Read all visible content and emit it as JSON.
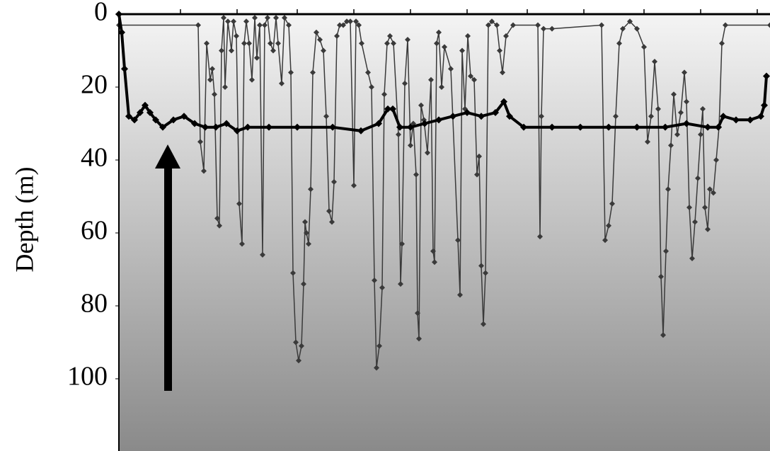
{
  "chart_data": {
    "type": "line",
    "y_label": "Depth (m)",
    "ylim": [
      0,
      120
    ],
    "yticks": [
      0,
      20,
      40,
      60,
      80,
      100
    ],
    "y_inverted": true,
    "xlim": [
      0,
      920
    ],
    "series": [
      {
        "color": "#3a3a3a",
        "line_width": 1.5,
        "marker_size": 4,
        "x": [
          0,
          112,
          115,
          120,
          124,
          129,
          132,
          135,
          139,
          142,
          145,
          148,
          150,
          154,
          159,
          162,
          166,
          170,
          174,
          177,
          180,
          184,
          188,
          192,
          195,
          199,
          203,
          206,
          210,
          214,
          218,
          222,
          225,
          230,
          234,
          240,
          243,
          246,
          250,
          254,
          258,
          261,
          263,
          265,
          268,
          271,
          274,
          279,
          284,
          289,
          293,
          297,
          301,
          304,
          308,
          312,
          317,
          322,
          327,
          332,
          335,
          339,
          343,
          352,
          357,
          361,
          364,
          368,
          372,
          375,
          379,
          383,
          388,
          395,
          398,
          400,
          404,
          408,
          412,
          416,
          420,
          422,
          424,
          427,
          431,
          436,
          441,
          444,
          446,
          449,
          452,
          456,
          460,
          469,
          479,
          482,
          485,
          489,
          493,
          497,
          502,
          506,
          509,
          512,
          515,
          518,
          522,
          527,
          534,
          538,
          542,
          547,
          557,
          592,
          595,
          597,
          600,
          612,
          682,
          687,
          692,
          697,
          702,
          707,
          712,
          722,
          732,
          742,
          747,
          752,
          757,
          762,
          766,
          769,
          773,
          776,
          780,
          784,
          789,
          794,
          799,
          802,
          806,
          810,
          814,
          818,
          822,
          825,
          828,
          832,
          835,
          840,
          844,
          848,
          852,
          857,
          920
        ],
        "values": [
          3,
          3,
          35,
          43,
          8,
          18,
          15,
          22,
          56,
          58,
          10,
          1,
          20,
          2,
          10,
          2,
          6,
          52,
          63,
          8,
          2,
          8,
          18,
          1,
          12,
          3,
          66,
          3,
          1,
          8,
          10,
          1,
          8,
          19,
          1,
          3,
          16,
          71,
          90,
          95,
          91,
          74,
          57,
          60,
          63,
          48,
          16,
          5,
          7,
          10,
          28,
          54,
          57,
          46,
          6,
          3,
          3,
          2,
          2,
          47,
          2,
          3,
          8,
          16,
          20,
          73,
          97,
          91,
          75,
          22,
          8,
          6,
          8,
          33,
          74,
          63,
          19,
          7,
          36,
          30,
          44,
          82,
          89,
          25,
          29,
          38,
          18,
          65,
          68,
          8,
          5,
          20,
          9,
          15,
          62,
          77,
          10,
          26,
          6,
          17,
          18,
          44,
          39,
          69,
          85,
          71,
          3,
          2,
          3,
          10,
          16,
          6,
          3,
          3,
          61,
          28,
          4,
          4,
          3,
          62,
          58,
          52,
          28,
          8,
          4,
          2,
          4,
          9,
          35,
          28,
          13,
          26,
          72,
          88,
          65,
          48,
          36,
          22,
          33,
          27,
          16,
          24,
          53,
          67,
          57,
          45,
          33,
          26,
          53,
          59,
          48,
          49,
          40,
          31,
          8,
          3,
          3
        ]
      },
      {
        "color": "#000000",
        "line_width": 4,
        "marker_size": 5,
        "x": [
          0,
          4,
          8,
          14,
          22,
          30,
          37,
          44,
          52,
          62,
          77,
          92,
          107,
          122,
          137,
          152,
          167,
          182,
          212,
          252,
          302,
          342,
          367,
          380,
          387,
          397,
          412,
          432,
          452,
          472,
          492,
          512,
          532,
          544,
          552,
          572,
          612,
          652,
          692,
          732,
          772,
          802,
          832,
          847,
          854,
          872,
          892,
          907,
          912,
          915
        ],
        "values": [
          0,
          5,
          15,
          28,
          29,
          27,
          25,
          27,
          29,
          31,
          29,
          28,
          30,
          31,
          31,
          30,
          32,
          31,
          31,
          31,
          31,
          32,
          30,
          26,
          26,
          31,
          31,
          30,
          29,
          28,
          27,
          28,
          27,
          24,
          28,
          31,
          31,
          31,
          31,
          31,
          31,
          30,
          31,
          31,
          28,
          29,
          29,
          28,
          25,
          17
        ]
      }
    ]
  }
}
